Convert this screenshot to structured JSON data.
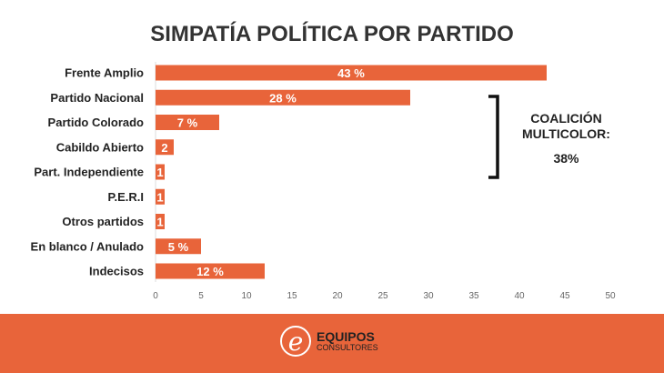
{
  "chart_data": {
    "type": "bar",
    "title": "SIMPATÍA POLÍTICA POR PARTIDO",
    "categories": [
      "Frente Amplio",
      "Partido Nacional",
      "Partido Colorado",
      "Cabildo Abierto",
      "Part. Independiente",
      "P.E.R.I",
      "Otros partidos",
      "En blanco / Anulado",
      "Indecisos"
    ],
    "values": [
      43,
      28,
      7,
      2,
      1,
      1,
      1,
      5,
      12
    ],
    "data_labels": [
      "43 %",
      "28 %",
      "7 %",
      "2",
      "1",
      "1",
      "1",
      "5 %",
      "12 %"
    ],
    "xlim": [
      0,
      50
    ],
    "xticks": [
      "0",
      "5",
      "10",
      "15",
      "20",
      "25",
      "30",
      "35",
      "40",
      "45",
      "50"
    ],
    "color": "#E8643A",
    "annotation": {
      "label": "COALICIÓN MULTICOLOR:",
      "value": "38%"
    }
  },
  "footer": {
    "brand": "EQUIPOS",
    "sub": "CONSULTORES",
    "logo_letter": "e"
  }
}
